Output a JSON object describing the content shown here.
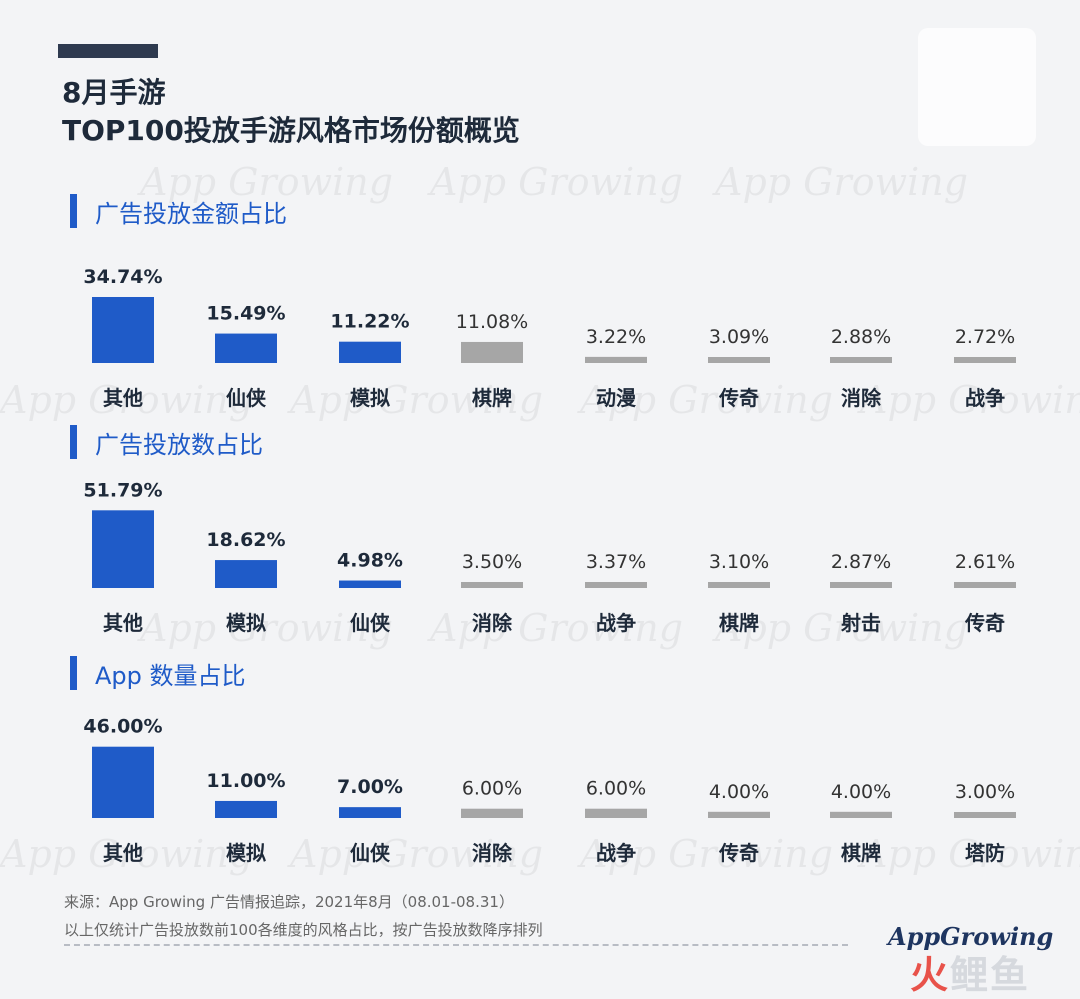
{
  "title": {
    "line1": "8月手游",
    "line2": "TOP100投放手游风格市场份额概览"
  },
  "watermark_text": "App Growing",
  "colors": {
    "top": "#1f5bc8",
    "other": "#a6a6a6",
    "section": "#1f5bc8"
  },
  "sections": [
    {
      "label": "广告投放金额占比"
    },
    {
      "label": "广告投放数占比"
    },
    {
      "label": "App 数量占比"
    }
  ],
  "chart_data": [
    {
      "type": "bar",
      "title": "广告投放金额占比",
      "categories": [
        "其他",
        "仙侠",
        "模拟",
        "棋牌",
        "动漫",
        "传奇",
        "消除",
        "战争"
      ],
      "values": [
        34.74,
        15.49,
        11.22,
        11.08,
        3.22,
        3.09,
        2.88,
        2.72
      ],
      "labels": [
        "34.74%",
        "15.49%",
        "11.22%",
        "11.08%",
        "3.22%",
        "3.09%",
        "2.88%",
        "2.72%"
      ],
      "highlight_count": 3,
      "unit": "%"
    },
    {
      "type": "bar",
      "title": "广告投放数占比",
      "categories": [
        "其他",
        "模拟",
        "仙侠",
        "消除",
        "战争",
        "棋牌",
        "射击",
        "传奇"
      ],
      "values": [
        51.79,
        18.62,
        4.98,
        3.5,
        3.37,
        3.1,
        2.87,
        2.61
      ],
      "labels": [
        "51.79%",
        "18.62%",
        "4.98%",
        "3.50%",
        "3.37%",
        "3.10%",
        "2.87%",
        "2.61%"
      ],
      "highlight_count": 3,
      "unit": "%"
    },
    {
      "type": "bar",
      "title": "App 数量占比",
      "categories": [
        "其他",
        "模拟",
        "仙侠",
        "消除",
        "战争",
        "传奇",
        "棋牌",
        "塔防"
      ],
      "values": [
        46.0,
        11.0,
        7.0,
        6.0,
        6.0,
        4.0,
        4.0,
        3.0
      ],
      "labels": [
        "46.00%",
        "11.00%",
        "7.00%",
        "6.00%",
        "6.00%",
        "4.00%",
        "4.00%",
        "3.00%"
      ],
      "highlight_count": 3,
      "unit": "%"
    }
  ],
  "footer": {
    "source": "来源：App Growing 广告情报追踪，2021年8月（08.01-08.31）",
    "note": "以上仅统计广告投放数前100各维度的风格占比，按广告投放数降序排列",
    "logo": "AppGrowing",
    "logo2_red": "火",
    "logo2_rest": "鲤鱼"
  }
}
